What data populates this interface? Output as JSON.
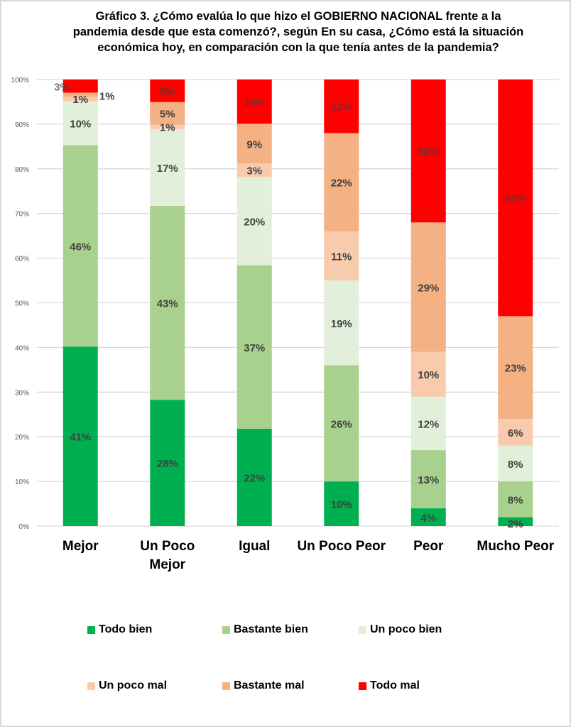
{
  "title_lines": [
    "Gráfico 3. ¿Cómo evalúa lo que hizo el GOBIERNO NACIONAL frente a la",
    "pandemia desde que esta comenzó?, según En su casa, ¿Cómo está la situación",
    "económica hoy, en comparación con la que tenía antes de la pandemia?"
  ],
  "chart_data": {
    "type": "bar",
    "stacked": true,
    "percent_stacked": true,
    "title": "Gráfico 3. ¿Cómo evalúa lo que hizo el GOBIERNO NACIONAL frente a la pandemia desde que esta comenzó?, según En su casa, ¿Cómo está la situación económica hoy, en comparación con la que tenía antes de la pandemia?",
    "xlabel": "",
    "ylabel": "",
    "ylim": [
      0,
      100
    ],
    "yticks": [
      "0%",
      "10%",
      "20%",
      "30%",
      "40%",
      "50%",
      "60%",
      "70%",
      "80%",
      "90%",
      "100%"
    ],
    "grid": true,
    "legend_position": "bottom",
    "categories": [
      "Mejor",
      "Un Poco\nMejor",
      "Igual",
      "Un Poco Peor",
      "Peor",
      "Mucho Peor"
    ],
    "category_lines": [
      [
        "Mejor"
      ],
      [
        "Un Poco",
        "Mejor"
      ],
      [
        "Igual"
      ],
      [
        "Un Poco Peor"
      ],
      [
        "Peor"
      ],
      [
        "Mucho Peor"
      ]
    ],
    "series": [
      {
        "name": "Todo bien",
        "color": "#00b050",
        "values": [
          41,
          28,
          22,
          10,
          4,
          2
        ],
        "labels": [
          "41%",
          "28%",
          "22%",
          "10%",
          "4%",
          "2%"
        ]
      },
      {
        "name": "Bastante bien",
        "color": "#a9d18e",
        "values": [
          46,
          43,
          37,
          26,
          13,
          8
        ],
        "labels": [
          "46%",
          "43%",
          "37%",
          "26%",
          "13%",
          "8%"
        ]
      },
      {
        "name": "Un poco bien",
        "color": "#e2efda",
        "values": [
          10,
          17,
          20,
          19,
          12,
          8
        ],
        "labels": [
          "10%",
          "17%",
          "20%",
          "19%",
          "12%",
          "8%"
        ]
      },
      {
        "name": "Un poco mal",
        "color": "#f8cbad",
        "values": [
          1,
          1,
          3,
          11,
          10,
          6
        ],
        "labels": [
          "1%",
          "1%",
          "3%",
          "11%",
          "10%",
          "6%"
        ]
      },
      {
        "name": "Bastante mal",
        "color": "#f4b183",
        "values": [
          1,
          5,
          9,
          22,
          29,
          23
        ],
        "labels": [
          "1%",
          "5%",
          "9%",
          "22%",
          "29%",
          "23%"
        ]
      },
      {
        "name": "Todo mal",
        "color": "#ff0000",
        "values": [
          3,
          5,
          10,
          12,
          32,
          53
        ],
        "labels": [
          "3%",
          "5%",
          "10%",
          "12%",
          "32%",
          "53%"
        ]
      }
    ]
  },
  "colors": {
    "grid": "#d9d9d9",
    "tick_text": "#595959",
    "data_label": "#404040",
    "frame": "#d9d9d9"
  }
}
